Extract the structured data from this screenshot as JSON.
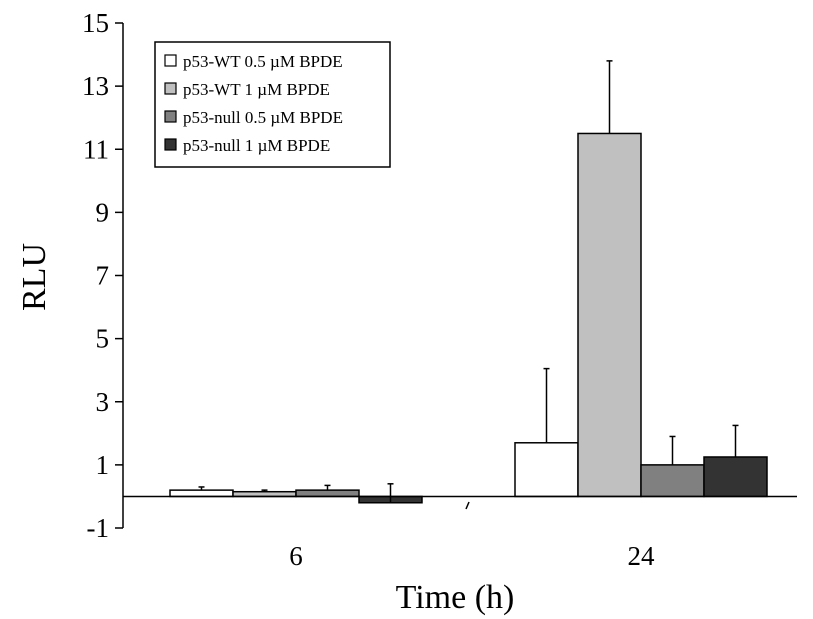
{
  "chart_data": {
    "type": "bar",
    "xlabel": "Time (h)",
    "ylabel": "RLU",
    "ylim": [
      -1,
      15
    ],
    "yticks": [
      "-1",
      "1",
      "3",
      "5",
      "7",
      "9",
      "11",
      "13",
      "15"
    ],
    "categories": [
      "6",
      "24"
    ],
    "legend_position": "top-left",
    "series": [
      {
        "name": "p53-WT 0.5 µM BPDE",
        "color": "#ffffff",
        "values": [
          0.2,
          1.7
        ],
        "errors": [
          0.1,
          2.35
        ]
      },
      {
        "name": "p53-WT 1 µM BPDE",
        "color": "#c0c0c0",
        "values": [
          0.15,
          11.5
        ],
        "errors": [
          0.05,
          2.3
        ]
      },
      {
        "name": "p53-null 0.5 µM BPDE",
        "color": "#808080",
        "values": [
          0.2,
          1.0
        ],
        "errors": [
          0.15,
          0.9
        ]
      },
      {
        "name": "p53-null 1 µM BPDE",
        "color": "#333333",
        "values": [
          -0.2,
          1.25
        ],
        "errors": [
          0.6,
          1.0
        ]
      }
    ]
  }
}
